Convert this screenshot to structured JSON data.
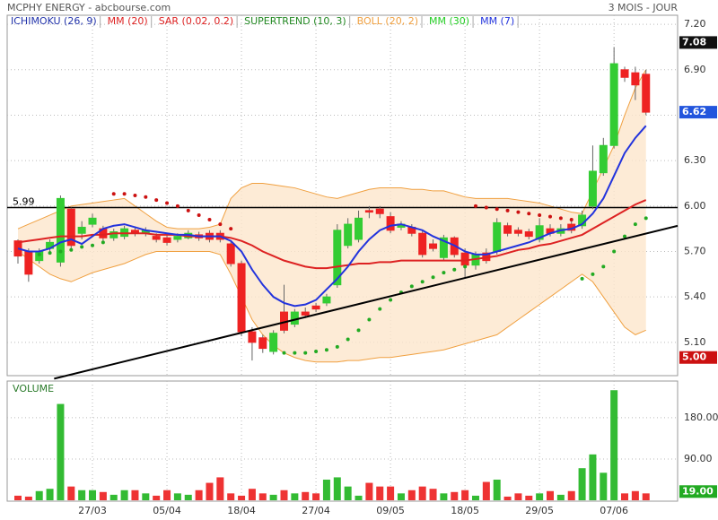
{
  "chart_data": [
    {
      "type": "candlestick",
      "title": "MCPHY ENERGY - abcbourse.com",
      "subtitle": "3 MOIS - JOUR",
      "categories": [
        null,
        null,
        null,
        null,
        null,
        null,
        null,
        "27/03",
        null,
        null,
        null,
        null,
        null,
        null,
        "05/04",
        null,
        null,
        null,
        null,
        null,
        null,
        "18/04",
        null,
        null,
        null,
        null,
        null,
        null,
        "27/04",
        null,
        null,
        null,
        null,
        null,
        null,
        "09/05",
        null,
        null,
        null,
        null,
        null,
        null,
        "18/05",
        null,
        null,
        null,
        null,
        null,
        null,
        "29/05",
        null,
        null,
        null,
        null,
        null,
        null,
        "07/06",
        null,
        null,
        null
      ],
      "open": [
        5.77,
        5.7,
        5.64,
        5.72,
        5.63,
        5.98,
        5.82,
        5.88,
        5.85,
        5.79,
        5.8,
        5.84,
        5.82,
        5.8,
        5.79,
        5.78,
        5.79,
        5.81,
        5.82,
        5.82,
        5.75,
        5.62,
        5.17,
        5.13,
        5.04,
        5.3,
        5.22,
        5.3,
        5.34,
        5.36,
        5.48,
        5.74,
        5.78,
        5.97,
        5.98,
        5.93,
        5.86,
        5.86,
        5.82,
        5.75,
        5.66,
        5.79,
        5.69,
        5.61,
        5.69,
        5.7,
        5.87,
        5.84,
        5.83,
        5.78,
        5.85,
        5.82,
        5.88,
        5.87,
        6.0,
        6.22,
        6.4,
        6.9,
        6.88,
        6.87
      ],
      "high": [
        5.78,
        5.72,
        5.72,
        5.78,
        6.07,
        5.99,
        5.9,
        5.95,
        5.87,
        5.85,
        5.87,
        5.86,
        5.86,
        5.82,
        5.81,
        5.82,
        5.84,
        5.83,
        5.84,
        5.84,
        5.77,
        5.64,
        5.2,
        5.15,
        5.18,
        5.48,
        5.32,
        5.33,
        5.36,
        5.42,
        5.88,
        5.92,
        5.97,
        6.0,
        6.0,
        5.96,
        5.9,
        5.88,
        5.84,
        5.78,
        5.81,
        5.8,
        5.72,
        5.7,
        5.72,
        5.92,
        5.89,
        5.86,
        5.85,
        5.92,
        5.88,
        5.88,
        5.91,
        5.97,
        6.4,
        6.45,
        7.05,
        6.92,
        6.92,
        6.9
      ],
      "low": [
        5.62,
        5.5,
        5.62,
        5.7,
        5.6,
        5.72,
        5.78,
        5.86,
        5.76,
        5.77,
        5.78,
        5.8,
        5.8,
        5.76,
        5.74,
        5.76,
        5.78,
        5.77,
        5.76,
        5.76,
        5.6,
        5.14,
        4.98,
        5.03,
        5.02,
        5.16,
        5.2,
        5.26,
        5.3,
        5.34,
        5.46,
        5.72,
        5.76,
        5.92,
        5.92,
        5.82,
        5.84,
        5.8,
        5.66,
        5.7,
        5.64,
        5.66,
        5.52,
        5.58,
        5.62,
        5.68,
        5.8,
        5.8,
        5.78,
        5.76,
        5.8,
        5.8,
        5.82,
        5.85,
        5.98,
        6.2,
        6.38,
        6.82,
        6.7,
        6.6
      ],
      "close": [
        5.67,
        5.55,
        5.7,
        5.76,
        6.05,
        5.74,
        5.86,
        5.92,
        5.79,
        5.83,
        5.85,
        5.82,
        5.84,
        5.78,
        5.76,
        5.8,
        5.82,
        5.79,
        5.78,
        5.78,
        5.62,
        5.17,
        5.1,
        5.06,
        5.16,
        5.18,
        5.3,
        5.28,
        5.32,
        5.4,
        5.84,
        5.88,
        5.92,
        5.96,
        5.95,
        5.84,
        5.88,
        5.82,
        5.68,
        5.72,
        5.79,
        5.68,
        5.61,
        5.68,
        5.64,
        5.89,
        5.82,
        5.82,
        5.8,
        5.87,
        5.82,
        5.85,
        5.84,
        5.94,
        6.23,
        6.4,
        6.94,
        6.85,
        6.8,
        6.62
      ],
      "up_color": "#33cc33",
      "down_color": "#ee2222",
      "ylim": [
        4.88,
        7.26
      ],
      "yticks": [
        {
          "value": 5.1,
          "label": "5.10"
        },
        {
          "value": 5.4,
          "label": "5.40"
        },
        {
          "value": 5.7,
          "label": "5.70"
        },
        {
          "value": 6.0,
          "label": "6.00"
        },
        {
          "value": 6.3,
          "label": "6.30"
        },
        {
          "value": 6.6,
          "label": "6.60"
        },
        {
          "value": 6.9,
          "label": "6.90"
        },
        {
          "value": 7.2,
          "label": "7.20"
        }
      ],
      "grid": true,
      "legend": [
        {
          "name": "ICHIMOKU (26, 9)",
          "color": "#2233aa"
        },
        {
          "name": "MM (20)",
          "color": "#dd2222"
        },
        {
          "name": "SAR (0.02, 0.2)",
          "color": "#dd2222"
        },
        {
          "name": "SUPERTREND (10, 3)",
          "color": "#228822"
        },
        {
          "name": "BOLL (20, 2)",
          "color": "#f0a040"
        },
        {
          "name": "MM (30)",
          "color": "#22cc22"
        },
        {
          "name": "MM (7)",
          "color": "#2233dd"
        }
      ],
      "bollinger": {
        "name": "BOLL (20, 2)",
        "color": "#f0a040",
        "fill": "#fde6cc",
        "upper": [
          5.85,
          5.88,
          5.91,
          5.94,
          5.97,
          6.0,
          6.01,
          6.02,
          6.03,
          6.04,
          6.05,
          6.0,
          5.95,
          5.9,
          5.86,
          5.85,
          5.85,
          5.85,
          5.86,
          5.88,
          6.05,
          6.12,
          6.15,
          6.15,
          6.14,
          6.13,
          6.12,
          6.1,
          6.08,
          6.06,
          6.05,
          6.07,
          6.09,
          6.11,
          6.12,
          6.12,
          6.12,
          6.11,
          6.11,
          6.1,
          6.1,
          6.08,
          6.06,
          6.05,
          6.05,
          6.05,
          6.05,
          6.04,
          6.03,
          6.02,
          6.0,
          5.98,
          5.96,
          5.95,
          6.1,
          6.25,
          6.4,
          6.6,
          6.78,
          6.9
        ],
        "lower": [
          5.7,
          5.65,
          5.6,
          5.55,
          5.52,
          5.5,
          5.53,
          5.56,
          5.58,
          5.6,
          5.62,
          5.65,
          5.68,
          5.7,
          5.7,
          5.7,
          5.7,
          5.7,
          5.7,
          5.68,
          5.55,
          5.4,
          5.25,
          5.15,
          5.08,
          5.03,
          5.0,
          4.98,
          4.97,
          4.97,
          4.97,
          4.98,
          4.98,
          4.99,
          5.0,
          5.0,
          5.01,
          5.02,
          5.03,
          5.04,
          5.05,
          5.07,
          5.09,
          5.11,
          5.13,
          5.15,
          5.2,
          5.25,
          5.3,
          5.35,
          5.4,
          5.45,
          5.5,
          5.55,
          5.5,
          5.4,
          5.3,
          5.2,
          5.15,
          5.18
        ]
      },
      "series": [
        {
          "name": "MM (20)",
          "color": "#dd2222",
          "values": [
            5.76,
            5.77,
            5.78,
            5.79,
            5.8,
            5.8,
            5.8,
            5.81,
            5.81,
            5.82,
            5.82,
            5.82,
            5.82,
            5.81,
            5.81,
            5.81,
            5.8,
            5.8,
            5.8,
            5.8,
            5.79,
            5.77,
            5.74,
            5.7,
            5.67,
            5.64,
            5.62,
            5.6,
            5.59,
            5.59,
            5.6,
            5.61,
            5.62,
            5.62,
            5.63,
            5.63,
            5.64,
            5.64,
            5.64,
            5.64,
            5.64,
            5.64,
            5.64,
            5.65,
            5.66,
            5.67,
            5.69,
            5.71,
            5.72,
            5.74,
            5.75,
            5.77,
            5.79,
            5.81,
            5.85,
            5.89,
            5.93,
            5.97,
            6.01,
            6.04
          ]
        },
        {
          "name": "MM (7)",
          "color": "#2233dd",
          "values": [
            5.72,
            5.7,
            5.7,
            5.72,
            5.76,
            5.78,
            5.75,
            5.8,
            5.85,
            5.87,
            5.88,
            5.86,
            5.84,
            5.83,
            5.82,
            5.81,
            5.81,
            5.8,
            5.8,
            5.8,
            5.77,
            5.7,
            5.58,
            5.48,
            5.4,
            5.36,
            5.34,
            5.35,
            5.38,
            5.45,
            5.52,
            5.6,
            5.7,
            5.78,
            5.84,
            5.87,
            5.88,
            5.86,
            5.84,
            5.8,
            5.77,
            5.74,
            5.7,
            5.68,
            5.68,
            5.7,
            5.72,
            5.74,
            5.76,
            5.79,
            5.82,
            5.84,
            5.85,
            5.88,
            5.95,
            6.05,
            6.2,
            6.35,
            6.45,
            6.53
          ]
        }
      ],
      "sar": {
        "name": "SAR (0.02, 0.2)",
        "up_color": "#22aa22",
        "down_color": "#cc1111",
        "values": [
          null,
          null,
          5.68,
          5.69,
          5.7,
          5.71,
          5.73,
          5.74,
          5.76,
          6.08,
          6.08,
          6.07,
          6.06,
          6.04,
          6.02,
          6.0,
          5.97,
          5.94,
          5.91,
          5.88,
          5.85,
          null,
          null,
          null,
          null,
          5.03,
          5.03,
          5.03,
          5.04,
          5.05,
          5.07,
          5.12,
          5.18,
          5.25,
          5.32,
          5.38,
          5.43,
          5.47,
          5.5,
          5.53,
          5.56,
          5.58,
          5.6,
          6.0,
          5.99,
          5.98,
          5.97,
          5.96,
          5.95,
          5.94,
          5.93,
          5.92,
          5.91,
          5.52,
          5.55,
          5.6,
          5.7,
          5.8,
          5.88,
          5.92
        ]
      },
      "reference_line": {
        "value": 5.99,
        "label": "5.99"
      },
      "trendline": {
        "x": [
          3.4,
          62
        ],
        "y": [
          4.86,
          5.87
        ]
      },
      "price_badges": [
        {
          "value": 7.08,
          "label": "7.08",
          "color": "#111111"
        },
        {
          "value": 6.62,
          "label": "6.62",
          "color": "#2255dd"
        },
        {
          "value": 5.0,
          "label": "5.00",
          "color": "#cc1111"
        }
      ]
    },
    {
      "type": "bar",
      "title": "VOLUME",
      "color": "#33bb33",
      "down_color": "#ee3333",
      "values": [
        10,
        8,
        20,
        25,
        210,
        30,
        22,
        22,
        18,
        12,
        22,
        22,
        15,
        10,
        22,
        15,
        12,
        22,
        38,
        50,
        15,
        10,
        25,
        15,
        12,
        22,
        15,
        18,
        15,
        45,
        50,
        30,
        10,
        38,
        30,
        30,
        15,
        22,
        30,
        25,
        15,
        18,
        22,
        10,
        40,
        45,
        8,
        15,
        10,
        15,
        20,
        12,
        20,
        70,
        100,
        60,
        240,
        15,
        20,
        15
      ],
      "ylim": [
        0,
        260
      ],
      "yticks": [
        {
          "value": 90,
          "label": "90.00"
        },
        {
          "value": 180,
          "label": "180.00"
        }
      ],
      "badge": {
        "value": 19,
        "label": "19.00",
        "color": "#22aa22"
      }
    }
  ]
}
